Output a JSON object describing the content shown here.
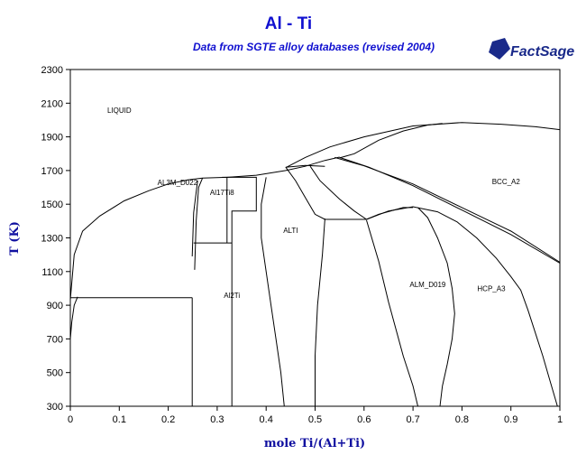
{
  "header": {
    "title": "Al - Ti",
    "subtitle": "Data from SGTE alloy databases (revised 2004)",
    "logo_text": "FactSage"
  },
  "chart_data": {
    "type": "line",
    "title": "Al - Ti",
    "subtitle": "Data from SGTE alloy databases (revised 2004)",
    "xlabel": "mole Ti/(Al+Ti)",
    "ylabel": "T (K)",
    "xlim": [
      0,
      1
    ],
    "ylim": [
      300,
      2300
    ],
    "xticks": [
      0,
      0.1,
      0.2,
      0.3,
      0.4,
      0.5,
      0.6,
      0.7,
      0.8,
      0.9,
      1
    ],
    "xtick_labels": [
      "0",
      "0.1",
      "0.2",
      "0.3",
      "0.4",
      "0.5",
      "0.6",
      "0.7",
      "0.8",
      "0.9",
      "1"
    ],
    "yticks": [
      300,
      500,
      700,
      900,
      1100,
      1300,
      1500,
      1700,
      1900,
      2100,
      2300
    ],
    "ytick_labels": [
      "300",
      "500",
      "700",
      "900",
      "1100",
      "1300",
      "1500",
      "1700",
      "1900",
      "2100",
      "2300"
    ],
    "grid": false,
    "phase_labels": [
      {
        "text": "LIQUID",
        "x": 0.1,
        "y": 2060
      },
      {
        "text": "AL3M_D022",
        "x": 0.219,
        "y": 1630
      },
      {
        "text": "Al17Ti8",
        "x": 0.31,
        "y": 1570
      },
      {
        "text": "ALTI",
        "x": 0.45,
        "y": 1345
      },
      {
        "text": "BCC_A2",
        "x": 0.89,
        "y": 1635
      },
      {
        "text": "ALM_D019",
        "x": 0.73,
        "y": 1025
      },
      {
        "text": "Al2Ti",
        "x": 0.33,
        "y": 960
      },
      {
        "text": "HCP_A3",
        "x": 0.86,
        "y": 1000
      }
    ],
    "series": [
      {
        "values": [
          [
            0,
            933
          ],
          [
            0.008,
            1200
          ],
          [
            0.025,
            1340
          ],
          [
            0.06,
            1430
          ],
          [
            0.11,
            1520
          ],
          [
            0.16,
            1580
          ],
          [
            0.2,
            1620
          ],
          [
            0.24,
            1645
          ],
          [
            0.27,
            1655
          ],
          [
            0.32,
            1660
          ]
        ]
      },
      {
        "values": [
          [
            0.32,
            1660
          ],
          [
            0.38,
            1672
          ],
          [
            0.44,
            1700
          ],
          [
            0.48,
            1725
          ],
          [
            0.52,
            1760
          ],
          [
            0.55,
            1780
          ]
        ]
      },
      {
        "values": [
          [
            0.44,
            1717
          ],
          [
            0.48,
            1778
          ],
          [
            0.53,
            1840
          ],
          [
            0.6,
            1900
          ],
          [
            0.7,
            1965
          ],
          [
            0.8,
            1985
          ],
          [
            0.88,
            1975
          ],
          [
            0.95,
            1960
          ],
          [
            1,
            1943
          ]
        ]
      },
      {
        "values": [
          [
            0.55,
            1775
          ],
          [
            0.58,
            1800
          ],
          [
            0.63,
            1880
          ],
          [
            0.68,
            1935
          ],
          [
            0.73,
            1970
          ],
          [
            0.76,
            1980
          ]
        ]
      },
      {
        "values": [
          [
            0.54,
            1778
          ],
          [
            0.6,
            1728
          ],
          [
            0.7,
            1620
          ],
          [
            0.8,
            1480
          ],
          [
            0.9,
            1340
          ],
          [
            1,
            1155
          ]
        ]
      },
      {
        "values": [
          [
            0.55,
            1778
          ],
          [
            0.61,
            1720
          ],
          [
            0.7,
            1610
          ],
          [
            0.8,
            1465
          ],
          [
            0.9,
            1320
          ],
          [
            1,
            1150
          ]
        ]
      },
      {
        "values": [
          [
            0.52,
            1725
          ],
          [
            0.48,
            1730
          ],
          [
            0.44,
            1720
          ]
        ]
      },
      {
        "values": [
          [
            0.44,
            1720
          ],
          [
            0.46,
            1640
          ],
          [
            0.48,
            1540
          ],
          [
            0.5,
            1440
          ],
          [
            0.52,
            1410
          ]
        ]
      },
      {
        "values": [
          [
            0.49,
            1725
          ],
          [
            0.51,
            1640
          ],
          [
            0.55,
            1530
          ],
          [
            0.58,
            1460
          ],
          [
            0.605,
            1410
          ]
        ]
      },
      {
        "values": [
          [
            0.52,
            1410
          ],
          [
            0.605,
            1410
          ]
        ]
      },
      {
        "values": [
          [
            0.605,
            1410
          ],
          [
            0.65,
            1460
          ],
          [
            0.7,
            1485
          ],
          [
            0.75,
            1455
          ],
          [
            0.79,
            1395
          ],
          [
            0.83,
            1300
          ],
          [
            0.87,
            1180
          ],
          [
            0.9,
            1070
          ],
          [
            0.92,
            990
          ],
          [
            0.935,
            870
          ],
          [
            0.965,
            600
          ],
          [
            0.98,
            450
          ],
          [
            0.995,
            300
          ]
        ]
      },
      {
        "values": [
          [
            0.605,
            1410
          ],
          [
            0.63,
            1440
          ],
          [
            0.68,
            1480
          ],
          [
            0.7,
            1480
          ]
        ]
      },
      {
        "values": [
          [
            0.605,
            1405
          ],
          [
            0.63,
            1160
          ],
          [
            0.65,
            920
          ],
          [
            0.68,
            600
          ],
          [
            0.7,
            420
          ],
          [
            0.71,
            300
          ]
        ]
      },
      {
        "values": [
          [
            0.71,
            1480
          ],
          [
            0.73,
            1420
          ],
          [
            0.75,
            1300
          ],
          [
            0.77,
            1150
          ],
          [
            0.78,
            1000
          ],
          [
            0.785,
            850
          ],
          [
            0.78,
            700
          ],
          [
            0.77,
            550
          ],
          [
            0.76,
            420
          ],
          [
            0.755,
            300
          ]
        ]
      },
      {
        "values": [
          [
            0.52,
            1415
          ],
          [
            0.515,
            1200
          ],
          [
            0.505,
            900
          ],
          [
            0.5,
            600
          ],
          [
            0.5,
            300
          ]
        ]
      },
      {
        "values": [
          [
            0.4,
            1660
          ],
          [
            0.39,
            1500
          ],
          [
            0.39,
            1300
          ],
          [
            0.4,
            1100
          ],
          [
            0.41,
            900
          ],
          [
            0.42,
            700
          ],
          [
            0.43,
            500
          ],
          [
            0.437,
            300
          ]
        ]
      },
      {
        "values": [
          [
            0.254,
            1110
          ],
          [
            0.257,
            1400
          ],
          [
            0.262,
            1600
          ],
          [
            0.27,
            1655
          ]
        ]
      },
      {
        "values": [
          [
            0.249,
            1190
          ],
          [
            0.252,
            1450
          ],
          [
            0.26,
            1640
          ]
        ]
      },
      {
        "values": [
          [
            0.249,
            300
          ],
          [
            0.249,
            945
          ]
        ]
      },
      {
        "values": [
          [
            0,
            945
          ],
          [
            0.249,
            945
          ]
        ]
      },
      {
        "values": [
          [
            0.252,
            1270
          ],
          [
            0.33,
            1270
          ]
        ]
      },
      {
        "values": [
          [
            0.31,
            1660
          ],
          [
            0.38,
            1660
          ],
          [
            0.38,
            1460
          ],
          [
            0.33,
            1460
          ],
          [
            0.33,
            300
          ]
        ]
      },
      {
        "values": [
          [
            0.32,
            1660
          ],
          [
            0.32,
            1270
          ]
        ]
      },
      {
        "values": [
          [
            0,
            700
          ],
          [
            0.003,
            800
          ],
          [
            0.008,
            900
          ],
          [
            0.015,
            950
          ]
        ]
      }
    ]
  }
}
